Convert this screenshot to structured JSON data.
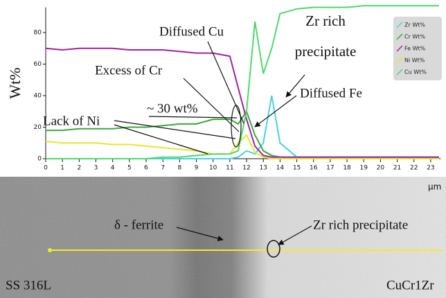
{
  "chart_data": {
    "type": "line",
    "y_label": "Wt%",
    "x_label": "µm",
    "x": [
      0,
      1,
      2,
      3,
      4,
      5,
      6,
      7,
      8,
      9,
      10,
      11,
      11.5,
      12,
      12.5,
      13,
      13.5,
      14,
      15,
      16,
      17,
      18,
      19,
      20,
      21,
      22,
      23,
      23.5
    ],
    "series": [
      {
        "name": "Zr Wt%",
        "color": "#45d3e0",
        "values": [
          0,
          0,
          0,
          0,
          0,
          0,
          0,
          0,
          0,
          0,
          0,
          0,
          1,
          5,
          3,
          10,
          40,
          10,
          1,
          1,
          1,
          1,
          1,
          1,
          1,
          1,
          1,
          1
        ]
      },
      {
        "name": "Cr Wt%",
        "color": "#3aa83a",
        "values": [
          18,
          18,
          19,
          19,
          19,
          20,
          20,
          21,
          22,
          22,
          25,
          25,
          22,
          30,
          15,
          5,
          2,
          1,
          1,
          1,
          1,
          1,
          1,
          1,
          1,
          1,
          1,
          1
        ]
      },
      {
        "name": "Fe Wt%",
        "color": "#a020a0",
        "values": [
          70,
          69,
          70,
          70,
          70,
          69,
          69,
          69,
          68,
          67,
          67,
          65,
          45,
          25,
          8,
          2,
          1,
          1,
          1,
          1,
          1,
          1,
          1,
          1,
          1,
          1,
          1,
          1
        ]
      },
      {
        "name": "Ni Wt%",
        "color": "#e6e630",
        "values": [
          11,
          10,
          10,
          10,
          9,
          9,
          8,
          7,
          6,
          5,
          3,
          3,
          10,
          15,
          4,
          1,
          0,
          0,
          0,
          0,
          0,
          0,
          0,
          0,
          0,
          0,
          0,
          0
        ]
      },
      {
        "name": "Cu Wt%",
        "color": "#4cd96a",
        "values": [
          0,
          0,
          0,
          0,
          0,
          0,
          0,
          1,
          1,
          2,
          3,
          3,
          5,
          30,
          87,
          54,
          70,
          92,
          95,
          96,
          96,
          96,
          97,
          97,
          97,
          97,
          97,
          97
        ]
      }
    ],
    "xlim": [
      0,
      23.6
    ],
    "ylim": [
      0,
      96
    ],
    "xticks": [
      0,
      1,
      2,
      3,
      4,
      5,
      6,
      7,
      8,
      9,
      10,
      11,
      12,
      13,
      14,
      15,
      16,
      17,
      18,
      19,
      20,
      21,
      22,
      23
    ],
    "yticks": [
      0,
      20,
      40,
      60,
      80
    ],
    "legend": "upper right",
    "annotations": [
      {
        "text": "Diffused Cu"
      },
      {
        "text": [
          "Zr rich",
          "precipitate"
        ]
      },
      {
        "text": "Excess of Cr"
      },
      {
        "text": "Diffused Fe"
      },
      {
        "text": "~ 30 wt%"
      },
      {
        "text": "Lack of Ni"
      }
    ]
  },
  "image": {
    "labels": [
      "δ - ferrite",
      "Zr rich precipitate",
      "SS 316L",
      "CuCr1Zr"
    ]
  }
}
